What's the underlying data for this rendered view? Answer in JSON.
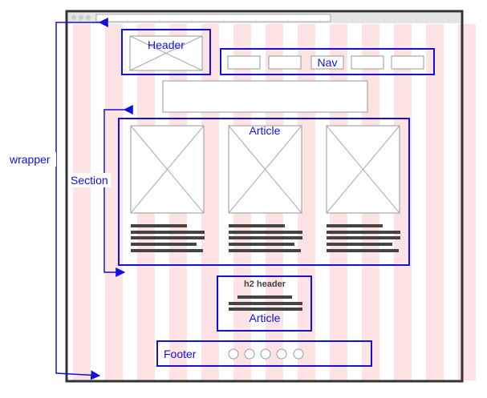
{
  "wrapper": {
    "label": "wrapper"
  },
  "section": {
    "label": "Section"
  },
  "header": {
    "label": "Header"
  },
  "nav": {
    "label": "Nav"
  },
  "article": {
    "label": "Article"
  },
  "aside": {
    "title": "h2 header",
    "label": "Article"
  },
  "footer": {
    "label": "Footer"
  }
}
